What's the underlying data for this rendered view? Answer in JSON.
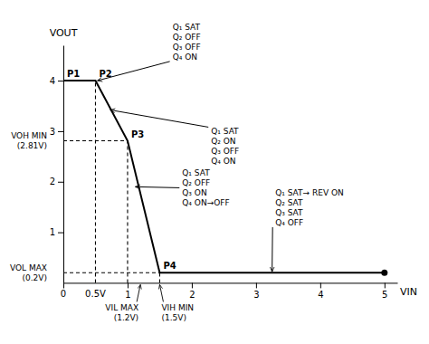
{
  "chart_data": {
    "type": "line",
    "x": [
      0,
      0.5,
      1.0,
      1.5,
      5.0
    ],
    "values": [
      4.0,
      4.0,
      2.81,
      0.2,
      0.2
    ],
    "color": "#000000",
    "xlim": [
      0,
      5.2
    ],
    "ylim": [
      -0.1,
      4.7
    ],
    "xticks": [
      1,
      2,
      3,
      4,
      5
    ],
    "yticks": [
      1,
      2,
      3,
      4
    ],
    "xlabel": "VIN",
    "ylabel": "VOUT",
    "grid": false,
    "reference_lines": [
      {
        "x": [
          0.5,
          0.5
        ],
        "y": [
          0,
          4.0
        ]
      },
      {
        "x": [
          0,
          1.0
        ],
        "y": [
          2.81,
          2.81
        ]
      },
      {
        "x": [
          1.0,
          1.0
        ],
        "y": [
          0,
          2.81
        ]
      },
      {
        "x": [
          1.5,
          1.5
        ],
        "y": [
          0,
          0.2
        ]
      },
      {
        "x": [
          0,
          1.5
        ],
        "y": [
          0.2,
          0.2
        ]
      }
    ],
    "point_labels": [
      {
        "text": "P1",
        "x": 0.0,
        "y": 4.0
      },
      {
        "text": "P2",
        "x": 0.5,
        "y": 4.0
      },
      {
        "text": "P3",
        "x": 1.0,
        "y": 2.81
      },
      {
        "text": "P4",
        "x": 1.5,
        "y": 0.2
      }
    ],
    "annotations": [
      {
        "text": "Q₁ SAT\nQ₂ OFF\nQ₃ OFF\nQ₄ ON",
        "x": 0.53,
        "y": 4.0,
        "text_x": 1.7,
        "text_y": 4.38
      },
      {
        "text": "Q₁ SAT\nQ₂ ON\nQ₃ OFF\nQ₄ ON",
        "x": 0.73,
        "y": 3.42,
        "text_x": 2.3,
        "text_y": 3.08
      },
      {
        "text": "Q₁ SAT\nQ₂ OFF\nQ₃ ON\nQ₄ ON→OFF",
        "x": 1.12,
        "y": 1.9,
        "text_x": 1.85,
        "text_y": 1.88
      },
      {
        "text": "Q₁ SAT→ REV ON\nQ₂ SAT\nQ₃ SAT\nQ₄ OFF",
        "x": 3.25,
        "y": 0.22,
        "text_x": 3.3,
        "text_y": 1.1
      }
    ],
    "x_labels": [
      {
        "value": 0,
        "text": "0"
      },
      {
        "value": 0.5,
        "text": "0.5V"
      }
    ],
    "x_markers": [
      {
        "value": 1.2,
        "text": "VIL MAX\n(1.2V)"
      },
      {
        "value": 1.5,
        "text": "VIH MIN\n(1.5V)"
      }
    ],
    "y_labels": [
      {
        "value": 2.81,
        "text": "VOH MIN\n(2.81V)"
      },
      {
        "value": 0.2,
        "text": "VOL MAX\n(0.2V)"
      }
    ]
  }
}
